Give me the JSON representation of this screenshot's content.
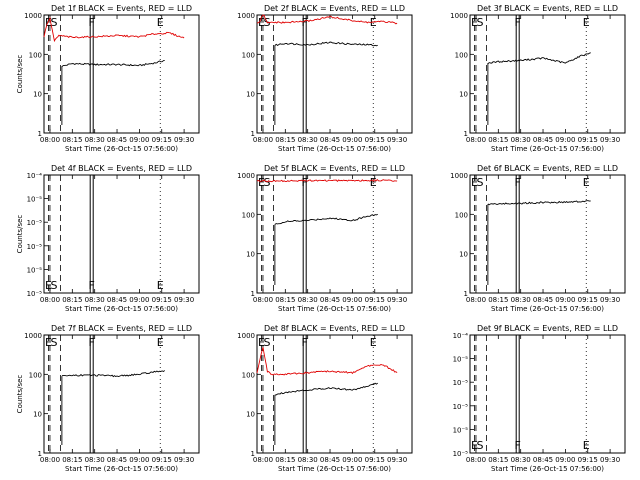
{
  "figure": {
    "colors": {
      "events": "#000000",
      "lld": "#e00000",
      "background": "#ffffff"
    }
  },
  "chart_data": [
    {
      "type": "line",
      "title": "Det 1f BLACK = Events, RED = LLD",
      "xlabel": "Start Time (26-Oct-15 07:56:00)",
      "ylabel": "Counts/sec",
      "scale": "log",
      "ylim": [
        1,
        1000
      ],
      "yticks": [
        "1",
        "10",
        "100",
        "1000"
      ],
      "xticks": [
        "08:00",
        "08:15",
        "08:30",
        "08:45",
        "09:00",
        "09:15",
        "09:30"
      ],
      "markers": [
        {
          "label": "E",
          "time": "07:59",
          "style": "dashed"
        },
        {
          "label": "S",
          "time": "08:00",
          "style": "dashed"
        },
        {
          "label": "",
          "time": "08:07",
          "style": "dashed"
        },
        {
          "label": "F",
          "time": "08:28",
          "style": "solid"
        },
        {
          "label": "E",
          "time": "09:14",
          "style": "dotted"
        }
      ],
      "series": [
        {
          "name": "Events",
          "color": "#000000",
          "x": [
            "08:08",
            "08:15",
            "08:30",
            "08:45",
            "09:00",
            "09:10",
            "09:17"
          ],
          "y": [
            50,
            58,
            55,
            55,
            52,
            60,
            70
          ]
        },
        {
          "name": "LLD",
          "color": "#e00000",
          "x": [
            "07:56",
            "07:58",
            "08:00",
            "08:03",
            "08:06",
            "08:15",
            "08:30",
            "08:45",
            "09:00",
            "09:10",
            "09:20",
            "09:30"
          ],
          "y": [
            280,
            600,
            800,
            220,
            300,
            270,
            280,
            300,
            280,
            330,
            350,
            260
          ]
        }
      ]
    },
    {
      "type": "line",
      "title": "Det 2f BLACK = Events, RED = LLD",
      "xlabel": "Start Time (26-Oct-15 07:56:00)",
      "ylabel": "",
      "scale": "log",
      "ylim": [
        1,
        1000
      ],
      "yticks": [
        "1",
        "10",
        "100",
        "1000"
      ],
      "xticks": [
        "08:00",
        "08:15",
        "08:30",
        "08:45",
        "09:00",
        "09:15",
        "09:30"
      ],
      "markers": [
        {
          "label": "E",
          "time": "07:59",
          "style": "dashed"
        },
        {
          "label": "S",
          "time": "08:00",
          "style": "dashed"
        },
        {
          "label": "",
          "time": "08:07",
          "style": "dashed"
        },
        {
          "label": "F",
          "time": "08:28",
          "style": "solid"
        },
        {
          "label": "E",
          "time": "09:14",
          "style": "dotted"
        }
      ],
      "series": [
        {
          "name": "Events",
          "color": "#000000",
          "x": [
            "08:08",
            "08:15",
            "08:30",
            "08:45",
            "09:00",
            "09:10",
            "09:17"
          ],
          "y": [
            170,
            190,
            175,
            200,
            180,
            175,
            170
          ]
        },
        {
          "name": "LLD",
          "color": "#e00000",
          "x": [
            "07:56",
            "07:58",
            "08:00",
            "08:03",
            "08:06",
            "08:15",
            "08:30",
            "08:45",
            "09:00",
            "09:10",
            "09:20",
            "09:30"
          ],
          "y": [
            600,
            700,
            1100,
            620,
            650,
            640,
            700,
            900,
            720,
            650,
            680,
            620
          ]
        }
      ]
    },
    {
      "type": "line",
      "title": "Det 3f BLACK = Events, RED = LLD",
      "xlabel": "Start Time (26-Oct-15 07:56:00)",
      "ylabel": "",
      "scale": "log",
      "ylim": [
        1,
        1000
      ],
      "yticks": [
        "1",
        "10",
        "100",
        "1000"
      ],
      "xticks": [
        "08:00",
        "08:15",
        "08:30",
        "08:45",
        "09:00",
        "09:15",
        "09:30"
      ],
      "markers": [
        {
          "label": "E",
          "time": "07:59",
          "style": "dashed"
        },
        {
          "label": "S",
          "time": "08:00",
          "style": "dashed"
        },
        {
          "label": "",
          "time": "08:07",
          "style": "dashed"
        },
        {
          "label": "F",
          "time": "08:28",
          "style": "solid"
        },
        {
          "label": "E",
          "time": "09:14",
          "style": "dotted"
        }
      ],
      "series": [
        {
          "name": "Events",
          "color": "#000000",
          "x": [
            "08:08",
            "08:15",
            "08:30",
            "08:45",
            "09:00",
            "09:10",
            "09:17"
          ],
          "y": [
            60,
            65,
            70,
            80,
            60,
            90,
            110
          ]
        }
      ]
    },
    {
      "type": "line",
      "title": "Det 4f BLACK = Events, RED = LLD",
      "xlabel": "Start Time (26-Oct-15 07:56:00)",
      "ylabel": "Counts/sec",
      "scale": "log",
      "ylim": [
        1e-05,
        0.0001
      ],
      "yticks": [
        "10⁻⁵",
        "10⁻⁵",
        "10⁻⁵",
        "10⁻⁵",
        "10⁻⁵",
        "10⁻⁴"
      ],
      "xticks": [
        "08:00",
        "08:15",
        "08:30",
        "08:45",
        "09:00",
        "09:15",
        "09:30"
      ],
      "markers": [
        {
          "label": "E",
          "time": "07:59",
          "style": "dashed"
        },
        {
          "label": "S",
          "time": "08:00",
          "style": "dashed"
        },
        {
          "label": "",
          "time": "08:07",
          "style": "dashed"
        },
        {
          "label": "F",
          "time": "08:28",
          "style": "solid"
        },
        {
          "label": "E",
          "time": "09:14",
          "style": "dotted"
        }
      ],
      "series": []
    },
    {
      "type": "line",
      "title": "Det 5f BLACK = Events, RED = LLD",
      "xlabel": "Start Time (26-Oct-15 07:56:00)",
      "ylabel": "",
      "scale": "log",
      "ylim": [
        1,
        1000
      ],
      "yticks": [
        "1",
        "10",
        "100",
        "1000"
      ],
      "xticks": [
        "08:00",
        "08:15",
        "08:30",
        "08:45",
        "09:00",
        "09:15",
        "09:30"
      ],
      "markers": [
        {
          "label": "E",
          "time": "07:59",
          "style": "dashed"
        },
        {
          "label": "S",
          "time": "08:00",
          "style": "dashed"
        },
        {
          "label": "",
          "time": "08:07",
          "style": "dashed"
        },
        {
          "label": "F",
          "time": "08:28",
          "style": "solid"
        },
        {
          "label": "E",
          "time": "09:14",
          "style": "dotted"
        }
      ],
      "series": [
        {
          "name": "Events",
          "color": "#000000",
          "x": [
            "08:08",
            "08:15",
            "08:30",
            "08:45",
            "09:00",
            "09:10",
            "09:17"
          ],
          "y": [
            55,
            65,
            70,
            80,
            70,
            90,
            100
          ]
        },
        {
          "name": "LLD",
          "color": "#e00000",
          "x": [
            "07:56",
            "07:58",
            "08:00",
            "08:03",
            "08:06",
            "08:15",
            "08:30",
            "08:45",
            "09:00",
            "09:10",
            "09:20",
            "09:30"
          ],
          "y": [
            700,
            700,
            720,
            700,
            700,
            700,
            720,
            720,
            730,
            720,
            740,
            700
          ]
        }
      ]
    },
    {
      "type": "line",
      "title": "Det 6f BLACK = Events, RED = LLD",
      "xlabel": "Start Time (26-Oct-15 07:56:00)",
      "ylabel": "",
      "scale": "log",
      "ylim": [
        1,
        1000
      ],
      "yticks": [
        "1",
        "10",
        "100",
        "1000"
      ],
      "xticks": [
        "08:00",
        "08:15",
        "08:30",
        "08:45",
        "09:00",
        "09:15",
        "09:30"
      ],
      "markers": [
        {
          "label": "E",
          "time": "07:59",
          "style": "dashed"
        },
        {
          "label": "S",
          "time": "08:00",
          "style": "dashed"
        },
        {
          "label": "",
          "time": "08:07",
          "style": "dashed"
        },
        {
          "label": "F",
          "time": "08:28",
          "style": "solid"
        },
        {
          "label": "E",
          "time": "09:14",
          "style": "dotted"
        }
      ],
      "series": [
        {
          "name": "Events",
          "color": "#000000",
          "x": [
            "08:08",
            "08:15",
            "08:30",
            "08:45",
            "09:00",
            "09:10",
            "09:17"
          ],
          "y": [
            180,
            185,
            190,
            200,
            205,
            210,
            220
          ]
        }
      ]
    },
    {
      "type": "line",
      "title": "Det 7f BLACK = Events, RED = LLD",
      "xlabel": "Start Time (26-Oct-15 07:56:00)",
      "ylabel": "Counts/sec",
      "scale": "log",
      "ylim": [
        1,
        1000
      ],
      "yticks": [
        "1",
        "10",
        "100",
        "1000"
      ],
      "xticks": [
        "08:00",
        "08:15",
        "08:30",
        "08:45",
        "09:00",
        "09:15",
        "09:30"
      ],
      "markers": [
        {
          "label": "E",
          "time": "07:59",
          "style": "dashed"
        },
        {
          "label": "S",
          "time": "08:00",
          "style": "dashed"
        },
        {
          "label": "",
          "time": "08:07",
          "style": "dashed"
        },
        {
          "label": "F",
          "time": "08:28",
          "style": "solid"
        },
        {
          "label": "E",
          "time": "09:14",
          "style": "dotted"
        }
      ],
      "series": [
        {
          "name": "Events",
          "color": "#000000",
          "x": [
            "08:08",
            "08:15",
            "08:30",
            "08:45",
            "09:00",
            "09:10",
            "09:17"
          ],
          "y": [
            90,
            95,
            95,
            90,
            100,
            115,
            125
          ]
        }
      ]
    },
    {
      "type": "line",
      "title": "Det 8f BLACK = Events, RED = LLD",
      "xlabel": "Start Time (26-Oct-15 07:56:00)",
      "ylabel": "",
      "scale": "log",
      "ylim": [
        1,
        1000
      ],
      "yticks": [
        "1",
        "10",
        "100",
        "1000"
      ],
      "xticks": [
        "08:00",
        "08:15",
        "08:30",
        "08:45",
        "09:00",
        "09:15",
        "09:30"
      ],
      "markers": [
        {
          "label": "E",
          "time": "07:59",
          "style": "dashed"
        },
        {
          "label": "S",
          "time": "08:00",
          "style": "dashed"
        },
        {
          "label": "",
          "time": "08:07",
          "style": "dashed"
        },
        {
          "label": "F",
          "time": "08:28",
          "style": "solid"
        },
        {
          "label": "E",
          "time": "09:14",
          "style": "dotted"
        }
      ],
      "series": [
        {
          "name": "Events",
          "color": "#000000",
          "x": [
            "08:08",
            "08:15",
            "08:30",
            "08:45",
            "09:00",
            "09:10",
            "09:17"
          ],
          "y": [
            30,
            35,
            40,
            45,
            40,
            50,
            60
          ]
        },
        {
          "name": "LLD",
          "color": "#e00000",
          "x": [
            "07:56",
            "07:58",
            "08:00",
            "08:03",
            "08:06",
            "08:15",
            "08:30",
            "08:45",
            "09:00",
            "09:10",
            "09:20",
            "09:30"
          ],
          "y": [
            110,
            250,
            500,
            120,
            100,
            100,
            110,
            120,
            110,
            160,
            180,
            110
          ]
        }
      ]
    },
    {
      "type": "line",
      "title": "Det 9f BLACK = Events, RED = LLD",
      "xlabel": "Start Time (26-Oct-15 07:56:00)",
      "ylabel": "",
      "scale": "log",
      "ylim": [
        1e-05,
        0.0001
      ],
      "yticks": [
        "10⁻⁵",
        "10⁻⁵",
        "10⁻⁵",
        "10⁻⁵",
        "10⁻⁵",
        "10⁻⁴"
      ],
      "xticks": [
        "08:00",
        "08:15",
        "08:30",
        "08:45",
        "09:00",
        "09:15",
        "09:30"
      ],
      "markers": [
        {
          "label": "E",
          "time": "07:59",
          "style": "dashed"
        },
        {
          "label": "S",
          "time": "08:00",
          "style": "dashed"
        },
        {
          "label": "",
          "time": "08:07",
          "style": "dashed"
        },
        {
          "label": "F",
          "time": "08:28",
          "style": "solid"
        },
        {
          "label": "E",
          "time": "09:14",
          "style": "dotted"
        }
      ],
      "series": []
    }
  ]
}
